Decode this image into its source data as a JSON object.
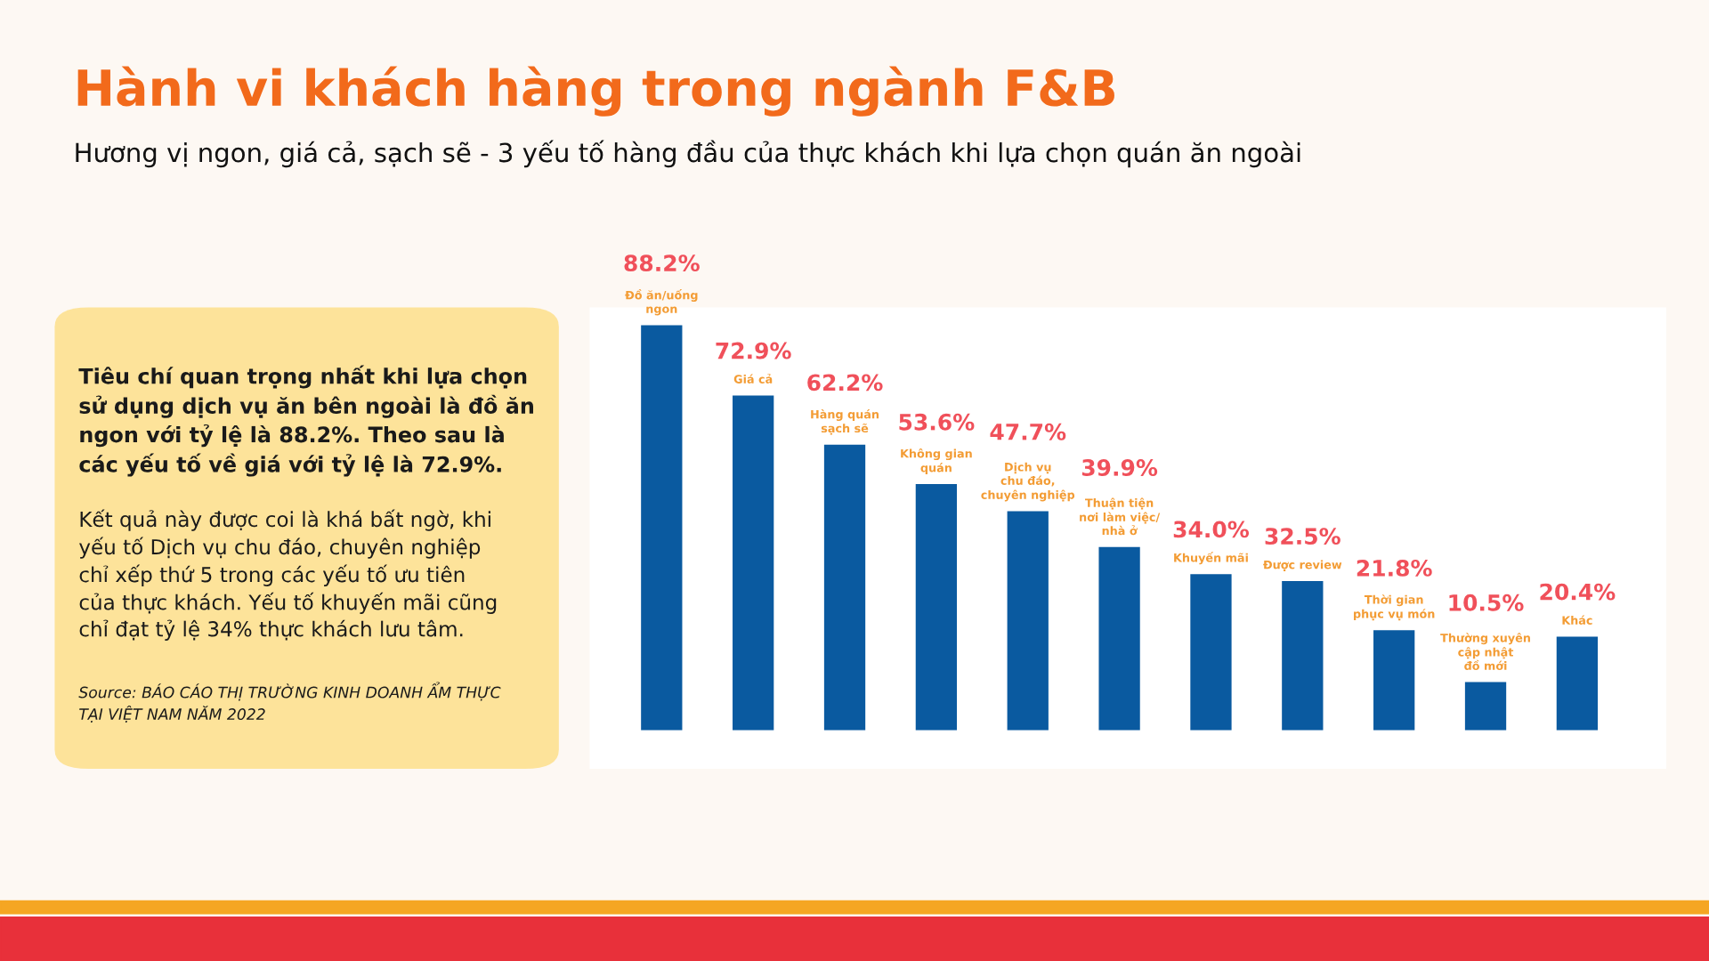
{
  "chart_data": {
    "type": "bar",
    "title": "Hành vi khách hàng trong ngành F&B",
    "subtitle": "Hương vị ngon, giá cả, sạch sẽ - 3 yếu tố hàng đầu của thực khách khi lựa chọn quán ăn ngoài",
    "categories": [
      "Đồ ăn/uống\nngon",
      "Giá cả",
      "Hàng quán\nsạch sẽ",
      "Không gian\nquán",
      "Dịch vụ\nchu đáo,\nchuyên nghiệp",
      "Thuận tiện\nnơi làm việc/\nnhà ở",
      "Khuyến mãi",
      "Được review",
      "Thời gian\nphục vụ món",
      "Thường xuyên\ncập nhật\nđồ mới",
      "Khác"
    ],
    "series": [
      {
        "color": "#0a5aa0",
        "values": [
          88.2,
          72.9,
          62.2,
          53.6,
          47.7,
          39.9,
          34.0,
          32.5,
          21.8,
          10.5,
          20.4
        ],
        "value_labels": [
          "88.2%",
          "72.9%",
          "62.2%",
          "53.6%",
          "47.7%",
          "39.9%",
          "34.0%",
          "32.5%",
          "21.8%",
          "10.5%",
          "20.4%"
        ]
      }
    ],
    "annotations": [
      "Tiêu chí quan trọng nhất khi lựa chọn\nsử dụng dịch vụ ăn bên ngoài là đồ ăn\nngon với tỷ lệ là 88.2%. Theo sau là\ncác yếu tố về giá với tỷ lệ là 72.9%.",
      "Kết quả này được coi là khá bất ngờ, khi\nyếu tố Dịch vụ chu đáo, chuyên nghiệp\nchỉ xếp thứ 5 trong các yếu tố ưu tiên\ncủa thực khách. Yếu tố khuyến mãi cũng\nchỉ đạt tỷ lệ 34% thực khách lưu tâm.",
      "Source: BÁO CÁO THỊ TRƯỜNG KINH DOANH ẨM THỰC\nTẠI VIỆT NAM NĂM 2022"
    ],
    "legend": false
  }
}
